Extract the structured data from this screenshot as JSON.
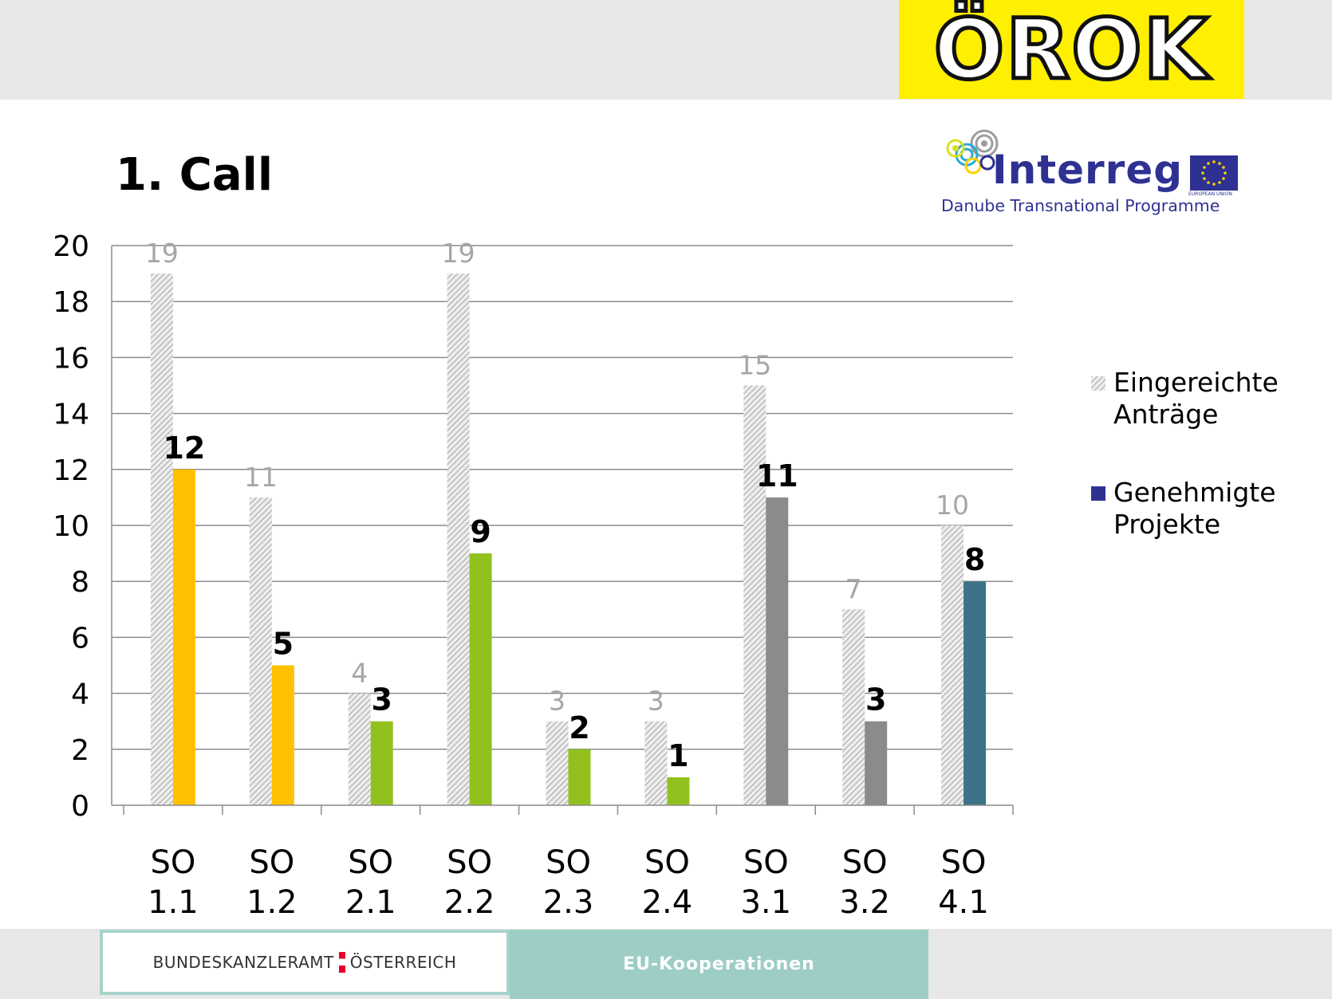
{
  "header": {
    "logo_text": "ÖROK",
    "title": "1. Call",
    "interreg_word": "Interreg",
    "interreg_subtitle": "Danube Transnational Programme",
    "eu_caption": "EUROPEAN UNION"
  },
  "footer": {
    "left_part1": "BUNDESKANZLERAMT",
    "left_part2": "ÖSTERREICH",
    "right_label": "EU-Kooperationen"
  },
  "legend": [
    {
      "label": "Eingereichte Anträge",
      "pattern": "hatched"
    },
    {
      "label": "Genehmigte Projekte",
      "color": "#2e3192"
    }
  ],
  "chart_data": {
    "type": "bar",
    "categories": [
      [
        "SO",
        "1.1"
      ],
      [
        "SO",
        "1.2"
      ],
      [
        "SO",
        "2.1"
      ],
      [
        "SO",
        "2.2"
      ],
      [
        "SO",
        "2.3"
      ],
      [
        "SO",
        "2.4"
      ],
      [
        "SO",
        "3.1"
      ],
      [
        "SO",
        "3.2"
      ],
      [
        "SO",
        "4.1"
      ]
    ],
    "series": [
      {
        "name": "Eingereichte Anträge",
        "values": [
          19,
          11,
          4,
          19,
          3,
          3,
          15,
          7,
          10
        ],
        "pattern": "hatched",
        "label_color": "#a6a6a6"
      },
      {
        "name": "Genehmigte Projekte",
        "values": [
          12,
          5,
          3,
          9,
          2,
          1,
          11,
          3,
          8
        ],
        "colors": [
          "#ffc000",
          "#ffc000",
          "#92c11f",
          "#92c11f",
          "#92c11f",
          "#92c11f",
          "#8b8b8e",
          "#8b8b8e",
          "#3c7386"
        ],
        "label_color": "#000000"
      }
    ],
    "y_ticks": [
      0,
      2,
      4,
      6,
      8,
      10,
      12,
      14,
      16,
      18,
      20
    ],
    "ylim": [
      0,
      20
    ],
    "grid": true,
    "legend_position": "right"
  }
}
